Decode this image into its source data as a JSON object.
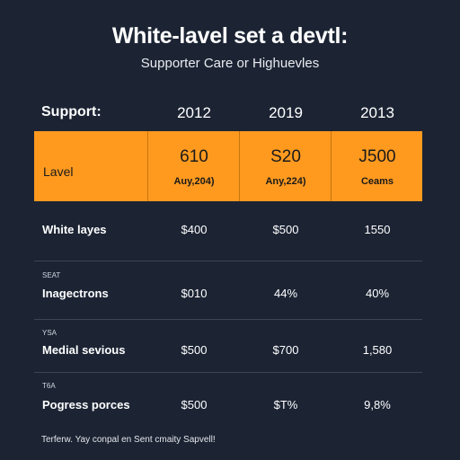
{
  "header": {
    "title": "White-lavel set a devtl:",
    "subtitle": "Supporter Care or Highuevles"
  },
  "table": {
    "row_header_label": "Support:",
    "years": [
      "2012",
      "2019",
      "2013"
    ],
    "highlight": {
      "label": "Lavel",
      "values": [
        "610",
        "S20",
        "J500"
      ],
      "subvalues": [
        "Auy,204)",
        "Any,224)",
        "Ceams"
      ]
    },
    "rows": [
      {
        "tag": "",
        "label": "White layes",
        "values": [
          "$400",
          "$500",
          "1550"
        ]
      },
      {
        "tag": "SEAT",
        "label": "Inagectrons",
        "values": [
          "$010",
          "44%",
          "40%"
        ]
      },
      {
        "tag": "YSA",
        "label": "Medial sevious",
        "values": [
          "$500",
          "$700",
          "1,580"
        ]
      },
      {
        "tag": "T6A",
        "label": "Pogress porces",
        "values": [
          "$500",
          "$T%",
          "9,8%"
        ]
      }
    ]
  },
  "footer": {
    "text": "Terferw. Yay conpal en Sent cmaity Sapvell!"
  },
  "colors": {
    "background": "#1c2434",
    "highlight": "#ff9a1f",
    "divider": "#3a4558"
  }
}
